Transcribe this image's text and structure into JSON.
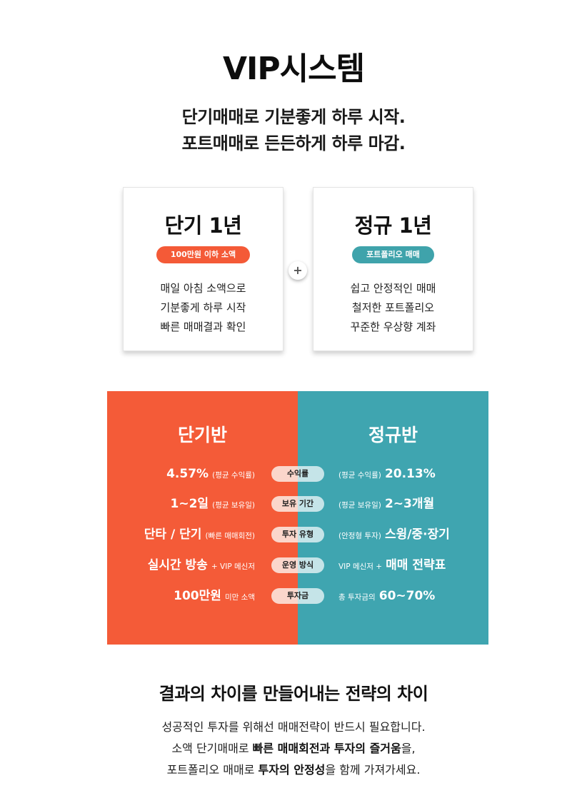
{
  "title": "VIP시스템",
  "subtitle": [
    "단기매매로 기분좋게 하루 시작.",
    "포트매매로 든든하게 하루 마감."
  ],
  "cards": [
    {
      "title": "단기 1년",
      "badge": "100만원 이하 소액",
      "badge_color": "#f45a37",
      "lines": [
        "매일 아침 소액으로",
        "기분좋게 하루 시작",
        "빠른 매매결과 확인"
      ]
    },
    {
      "title": "정규 1년",
      "badge": "포트폴리오 매매",
      "badge_color": "#3fa3ab",
      "lines": [
        "쉽고 안정적인 매매",
        "철저한 포트폴리오",
        "꾸준한 우상향 계좌"
      ]
    }
  ],
  "plus_symbol": "+",
  "compare": {
    "left_title": "단기반",
    "right_title": "정규반",
    "left_color": "#f45b38",
    "right_color": "#3fa5b0",
    "rows": [
      {
        "label": "수익률",
        "left_main": "4.57%",
        "left_sub": "(평균 수익률)",
        "right_sub": "(평균 수익률)",
        "right_main": "20.13%"
      },
      {
        "label": "보유 기간",
        "left_main": "1~2일",
        "left_sub": "(평균 보유일)",
        "right_sub": "(평균 보유일)",
        "right_main": "2~3개월"
      },
      {
        "label": "투자 유형",
        "left_main": "단타 / 단기",
        "left_sub": "(빠른 매매회전)",
        "right_sub": "(안정형 투자)",
        "right_main": "스윙/중·장기"
      },
      {
        "label": "운영 방식",
        "left_main": "실시간 방송",
        "left_sub": "+ VIP 메신저",
        "right_sub": "VIP 메신저 +",
        "right_main": "매매 전략표"
      },
      {
        "label": "투자금",
        "left_main": "100만원",
        "left_sub": "미만 소액",
        "right_sub": "총 투자금의",
        "right_main": "60~70%"
      }
    ]
  },
  "footer": {
    "title": "결과의 차이를 만들어내는 전략의 차이",
    "line1": "성공적인 투자를 위해선 매매전략이 반드시 필요합니다.",
    "line2_a": "소액 단기매매로 ",
    "line2_b": "빠른 매매회전과 투자의 즐거움",
    "line2_c": "을,",
    "line3_a": "포트폴리오 매매로 ",
    "line3_b": "투자의 안정성",
    "line3_c": "을 함께 가져가세요."
  }
}
